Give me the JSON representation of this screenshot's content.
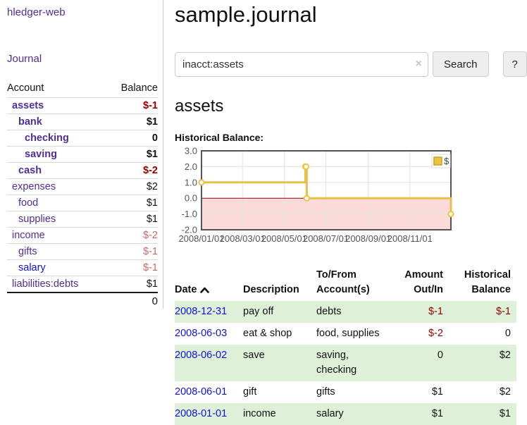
{
  "app": {
    "brand": "hledger-web",
    "journal_link": "Journal"
  },
  "sidebar": {
    "header": {
      "account": "Account",
      "balance": "Balance"
    },
    "accounts": [
      {
        "name": "assets",
        "indent": 1,
        "bold": true,
        "link": "purple",
        "balance": "$-1",
        "neg": "dark"
      },
      {
        "name": "bank",
        "indent": 2,
        "bold": true,
        "link": "purple",
        "balance": "$1",
        "neg": null
      },
      {
        "name": "checking",
        "indent": 3,
        "bold": true,
        "link": "purple",
        "balance": "0",
        "neg": null
      },
      {
        "name": "saving",
        "indent": 3,
        "bold": true,
        "link": "purple",
        "balance": "$1",
        "neg": null
      },
      {
        "name": "cash",
        "indent": 2,
        "bold": true,
        "link": "purple",
        "balance": "$-2",
        "neg": "dark"
      },
      {
        "name": "expenses",
        "indent": 1,
        "bold": false,
        "link": "purple",
        "balance": "$2",
        "neg": null
      },
      {
        "name": "food",
        "indent": 2,
        "bold": false,
        "link": "purple",
        "balance": "$1",
        "neg": null
      },
      {
        "name": "supplies",
        "indent": 2,
        "bold": false,
        "link": "purple",
        "balance": "$1",
        "neg": null
      },
      {
        "name": "income",
        "indent": 1,
        "bold": false,
        "link": "purple",
        "balance": "$-2",
        "neg": "light"
      },
      {
        "name": "gifts",
        "indent": 2,
        "bold": false,
        "link": "purple",
        "balance": "$-1",
        "neg": "light"
      },
      {
        "name": "salary",
        "indent": 2,
        "bold": false,
        "link": "blue",
        "balance": "$-1",
        "neg": "light"
      },
      {
        "name": "liabilities:debts",
        "indent": 1,
        "bold": false,
        "link": "purple",
        "balance": "$1",
        "neg": null
      }
    ],
    "total": "0"
  },
  "header": {
    "title": "sample.journal"
  },
  "search": {
    "value": "inacct:assets",
    "clear_icon": "×",
    "search_label": "Search",
    "help_label": "?"
  },
  "account_page": {
    "heading": "assets",
    "chart_label": "Historical Balance:"
  },
  "chart_data": {
    "type": "line",
    "step": true,
    "title": "Historical Balance",
    "series": [
      {
        "name": "$",
        "points": [
          [
            "2008-01-01",
            1
          ],
          [
            "2008-06-01",
            2
          ],
          [
            "2008-06-02",
            2
          ],
          [
            "2008-06-03",
            0
          ],
          [
            "2008-12-31",
            -1
          ]
        ]
      }
    ],
    "xrange": [
      "2008-01-01",
      "2008-12-31"
    ],
    "ylim": [
      -2,
      3
    ],
    "ytick_labels": [
      "3.0",
      "2.0",
      "1.0",
      "0.0",
      "-1.0",
      "-2.0"
    ],
    "xticks": [
      {
        "date": "2008-01-01",
        "label": "2008/01/01"
      },
      {
        "date": "2008-03-01",
        "label": "2008/03/01"
      },
      {
        "date": "2008-05-01",
        "label": "2008/05/01"
      },
      {
        "date": "2008-07-01",
        "label": "2008/07/01"
      },
      {
        "date": "2008-09-01",
        "label": "2008/09/01"
      },
      {
        "date": "2008-11-01",
        "label": "2008/11/01"
      }
    ],
    "legend_position": "top-right",
    "grid": true,
    "colors": {
      "line": "#e7c04a",
      "line_core": "#edc240",
      "marker_fill": "#ffffff",
      "negative_fill": "#fbdada",
      "zero_line": "#8b0000",
      "grid": "#e3e3e3",
      "border": "#545454",
      "tick_text": "#545454",
      "legend_border": "#dddddd",
      "legend_square": "#edc240",
      "legend_square_border": "#caa12f"
    }
  },
  "register": {
    "headers": {
      "date": "Date",
      "description": "Description",
      "accounts": "To/From Account(s)",
      "amount": "Amount Out/In",
      "balance": "Historical Balance"
    },
    "rows": [
      {
        "date": "2008-12-31",
        "description": "pay off",
        "accounts": "debts",
        "amount": "$-1",
        "amount_neg": true,
        "balance": "$-1",
        "balance_neg": true
      },
      {
        "date": "2008-06-03",
        "description": "eat & shop",
        "accounts": "food, supplies",
        "amount": "$-2",
        "amount_neg": true,
        "balance": "0",
        "balance_neg": false
      },
      {
        "date": "2008-06-02",
        "description": "save",
        "accounts": "saving, checking",
        "amount": "0",
        "amount_neg": false,
        "balance": "$2",
        "balance_neg": false
      },
      {
        "date": "2008-06-01",
        "description": "gift",
        "accounts": "gifts",
        "amount": "$1",
        "amount_neg": false,
        "balance": "$2",
        "balance_neg": false
      },
      {
        "date": "2008-01-01",
        "description": "income",
        "accounts": "salary",
        "amount": "$1",
        "amount_neg": false,
        "balance": "$1",
        "balance_neg": false
      }
    ]
  }
}
